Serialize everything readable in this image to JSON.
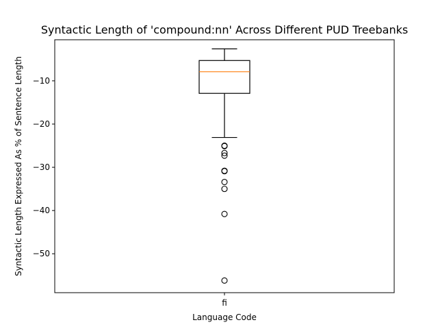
{
  "chart_data": {
    "type": "box",
    "title": "Syntactic Length of 'compound:nn' Across Different PUD Treebanks",
    "xlabel": "Language Code",
    "ylabel": "Syntactic Length Expressed As % of Sentence Length",
    "ylim": [
      -59,
      -0.5
    ],
    "yticks": [
      -10,
      -20,
      -30,
      -40,
      -50
    ],
    "ytick_labels": [
      "−10",
      "−20",
      "−30",
      "−40",
      "−50"
    ],
    "categories": [
      "fi"
    ],
    "boxes": [
      {
        "category": "fi",
        "whisker_high": -2.6,
        "q3": -5.3,
        "median": -7.9,
        "q1": -12.9,
        "whisker_low": -23.1,
        "outliers": [
          -25.0,
          -25.1,
          -26.7,
          -27.3,
          -30.8,
          -30.9,
          -33.4,
          -35.0,
          -40.8,
          -56.2
        ]
      }
    ],
    "colors": {
      "box": "#000000",
      "median": "#ff7f0e",
      "axes": "#000000"
    },
    "grid": false,
    "legend": "none"
  }
}
